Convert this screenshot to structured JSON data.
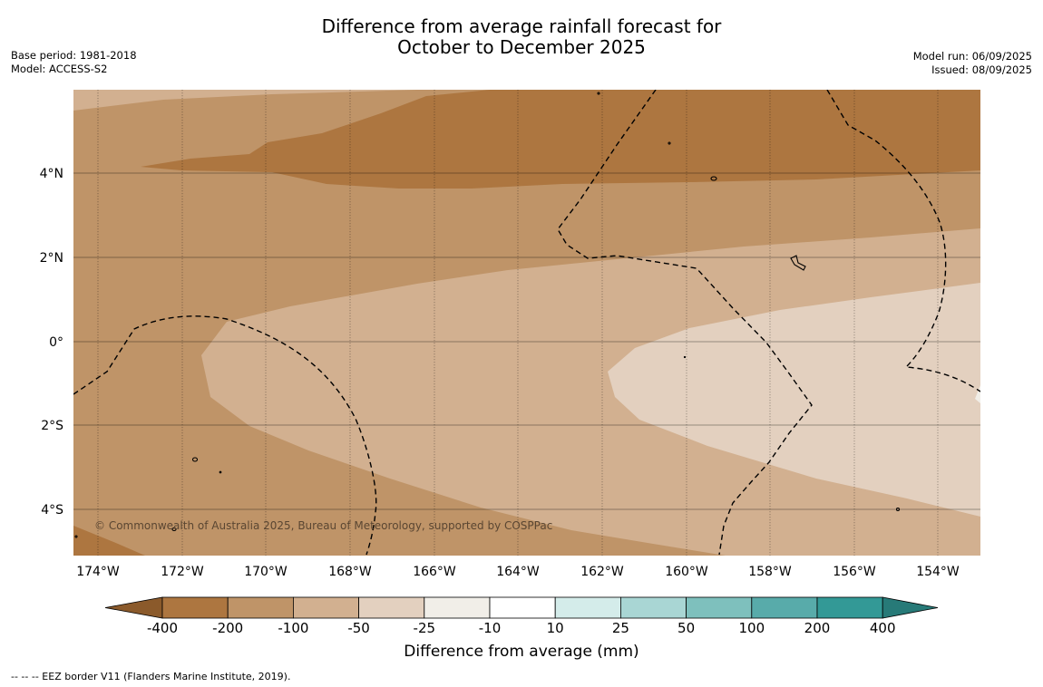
{
  "title_line1": "Difference from average rainfall forecast for",
  "title_line2": "October to December 2025",
  "base_period": "Base period: 1981-2018",
  "model": "Model: ACCESS-S2",
  "model_run": "Model run: 06/09/2025",
  "issued": "Issued: 08/09/2025",
  "copyright": "© Commonwealth of Australia 2025, Bureau of Meteorology, supported by COSPPac",
  "colorbar_title": "Difference from average (mm)",
  "footnote": "--  --  -- EEZ border V11 (Flanders Marine Institute, 2019).",
  "lat_labels": [
    "4°N",
    "2°N",
    "0°",
    "2°S",
    "4°S"
  ],
  "lon_labels": [
    "174°W",
    "172°W",
    "170°W",
    "168°W",
    "166°W",
    "164°W",
    "162°W",
    "160°W",
    "158°W",
    "156°W",
    "154°W"
  ],
  "colorbar": {
    "ticks": [
      "-400",
      "-200",
      "-100",
      "-50",
      "-25",
      "-10",
      "10",
      "25",
      "50",
      "100",
      "200",
      "400"
    ],
    "colors": [
      "#8b5a2b",
      "#ad7640",
      "#bf9468",
      "#d2b090",
      "#e3d0bf",
      "#f1eee8",
      "#ffffff",
      "#d4ecea",
      "#a9d6d4",
      "#7ec0bd",
      "#58abaa",
      "#339996",
      "#277a78"
    ]
  }
}
